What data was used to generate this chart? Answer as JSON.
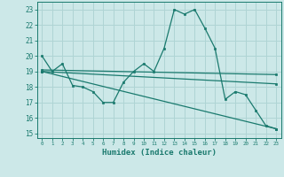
{
  "line1_x": [
    0,
    1,
    2,
    3,
    4,
    5,
    6,
    7,
    8,
    9,
    10,
    11,
    12,
    13,
    14,
    15,
    16,
    17,
    18,
    19,
    20,
    21,
    22,
    23
  ],
  "line1_y": [
    20.0,
    19.0,
    19.5,
    18.1,
    18.0,
    17.7,
    17.0,
    17.0,
    18.3,
    19.0,
    19.5,
    19.0,
    20.5,
    23.0,
    22.7,
    23.0,
    21.8,
    20.5,
    17.2,
    17.7,
    17.5,
    16.5,
    15.5,
    15.3
  ],
  "line2_x": [
    0,
    23
  ],
  "line2_y": [
    19.1,
    18.8
  ],
  "line3_x": [
    0,
    23
  ],
  "line3_y": [
    19.0,
    18.2
  ],
  "line4_x": [
    0,
    23
  ],
  "line4_y": [
    19.0,
    15.3
  ],
  "line_color": "#1a7a6e",
  "bg_color": "#cce8e8",
  "grid_color": "#afd4d4",
  "xlabel": "Humidex (Indice chaleur)",
  "ylim": [
    14.7,
    23.5
  ],
  "xlim": [
    -0.5,
    23.5
  ],
  "yticks": [
    15,
    16,
    17,
    18,
    19,
    20,
    21,
    22,
    23
  ],
  "xticks": [
    0,
    1,
    2,
    3,
    4,
    5,
    6,
    7,
    8,
    9,
    10,
    11,
    12,
    13,
    14,
    15,
    16,
    17,
    18,
    19,
    20,
    21,
    22,
    23
  ]
}
